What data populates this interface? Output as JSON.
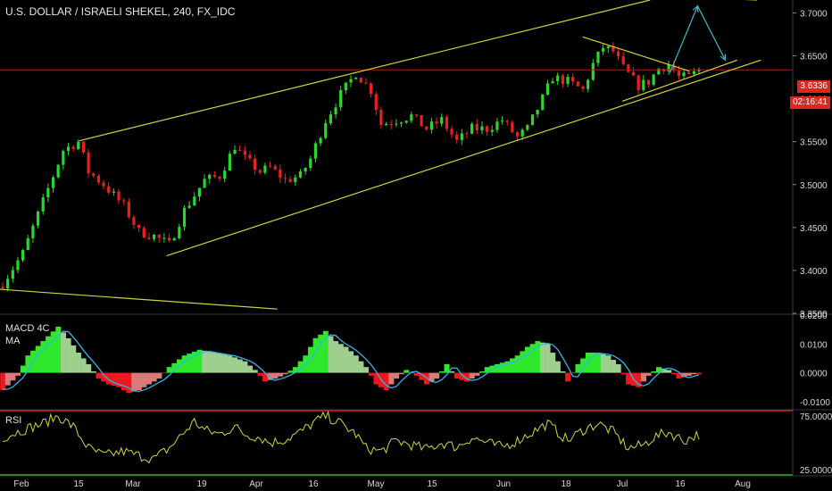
{
  "header": {
    "title": "U.S. DOLLAR / ISRAELI SHEKEL, 240, FX_IDC"
  },
  "price_tags": {
    "last_price": "3.6336",
    "countdown": "02:16:41"
  },
  "panels": {
    "macd_label_1": "MACD 4C",
    "macd_label_2": "MA",
    "rsi_label": "RSI"
  },
  "colors": {
    "background": "#000000",
    "candle_up": "#29d82a",
    "candle_down": "#e8201e",
    "trendline": "#d4d23a",
    "arrow": "#3bb7c8",
    "macd_pos": "#2ee82e",
    "macd_pos_fade": "#9fcf8f",
    "macd_neg": "#f0161b",
    "macd_neg_fade": "#d97a7a",
    "macd_signal": "#2fb6e8",
    "rsi_line": "#d6d23a",
    "rsi_upper": "#ff2020",
    "rsi_lower": "#22c222",
    "price_line": "#a81d1d"
  },
  "chart_data": [
    {
      "type": "candlestick",
      "title": "U.S. DOLLAR / ISRAELI SHEKEL, 240, FX_IDC",
      "x_ticks": [
        "Feb",
        "15",
        "Mar",
        "19",
        "Apr",
        "16",
        "May",
        "15",
        "Jun",
        "18",
        "Jul",
        "16",
        "Aug"
      ],
      "y_ticks": [
        "3.7000",
        "3.6500",
        "3.6000",
        "3.5500",
        "3.5000",
        "3.4500",
        "3.4000",
        "3.3500"
      ],
      "ylim": [
        3.35,
        3.715
      ],
      "close_path": [
        [
          0,
          3.385
        ],
        [
          4,
          3.42
        ],
        [
          8,
          3.48
        ],
        [
          12,
          3.54
        ],
        [
          15,
          3.55
        ],
        [
          17,
          3.515
        ],
        [
          20,
          3.5
        ],
        [
          24,
          3.475
        ],
        [
          27,
          3.445
        ],
        [
          30,
          3.44
        ],
        [
          33,
          3.43
        ],
        [
          36,
          3.47
        ],
        [
          40,
          3.505
        ],
        [
          43,
          3.51
        ],
        [
          46,
          3.545
        ],
        [
          48,
          3.53
        ],
        [
          51,
          3.515
        ],
        [
          53,
          3.52
        ],
        [
          56,
          3.505
        ],
        [
          59,
          3.51
        ],
        [
          61,
          3.53
        ],
        [
          64,
          3.575
        ],
        [
          67,
          3.605
        ],
        [
          70,
          3.63
        ],
        [
          73,
          3.61
        ],
        [
          75,
          3.57
        ],
        [
          78,
          3.575
        ],
        [
          81,
          3.58
        ],
        [
          84,
          3.565
        ],
        [
          87,
          3.575
        ],
        [
          90,
          3.55
        ],
        [
          93,
          3.565
        ],
        [
          96,
          3.565
        ],
        [
          99,
          3.575
        ],
        [
          102,
          3.555
        ],
        [
          104,
          3.565
        ],
        [
          107,
          3.6
        ],
        [
          109,
          3.625
        ],
        [
          112,
          3.62
        ],
        [
          115,
          3.61
        ],
        [
          117,
          3.64
        ],
        [
          119,
          3.66
        ],
        [
          121,
          3.655
        ],
        [
          123,
          3.635
        ],
        [
          126,
          3.615
        ],
        [
          128,
          3.62
        ],
        [
          130,
          3.635
        ],
        [
          132,
          3.64
        ],
        [
          134,
          3.625
        ],
        [
          136,
          3.625
        ],
        [
          138,
          3.6336
        ]
      ],
      "last_price": 3.6336,
      "annotations": {
        "channel_upper": [
          [
            0.1,
            3.551
          ],
          [
            0.82,
            3.715
          ]
        ],
        "channel_lower": [
          [
            0.21,
            3.417
          ],
          [
            0.96,
            3.645
          ]
        ],
        "long_resistance": [
          [
            0.55,
            3.73
          ],
          [
            0.955,
            3.715
          ]
        ],
        "long_support": [
          [
            0.0,
            3.378
          ],
          [
            0.35,
            3.355
          ]
        ],
        "triangle_top": [
          [
            0.735,
            3.672
          ],
          [
            0.87,
            3.632
          ]
        ],
        "triangle_bottom": [
          [
            0.785,
            3.597
          ],
          [
            0.93,
            3.645
          ]
        ],
        "projection_arrow": [
          [
            0.845,
            3.63
          ],
          [
            0.88,
            3.708
          ],
          [
            0.915,
            3.645
          ]
        ]
      }
    },
    {
      "type": "histogram",
      "title": "MACD 4C",
      "y_ticks": [
        "0.0200",
        "0.0100",
        "0.0000",
        "-0.0100"
      ],
      "ylim": [
        -0.0125,
        0.02
      ],
      "path": [
        [
          0,
          -0.006
        ],
        [
          3,
          -0.001
        ],
        [
          5,
          0.006
        ],
        [
          8,
          0.011
        ],
        [
          11,
          0.016
        ],
        [
          13,
          0.012
        ],
        [
          15,
          0.007
        ],
        [
          17,
          0.003
        ],
        [
          19,
          -0.002
        ],
        [
          21,
          -0.004
        ],
        [
          23,
          -0.005
        ],
        [
          25,
          -0.007
        ],
        [
          27,
          -0.006
        ],
        [
          29,
          -0.004
        ],
        [
          31,
          -0.002
        ],
        [
          33,
          0.002
        ],
        [
          36,
          0.006
        ],
        [
          39,
          0.008
        ],
        [
          42,
          0.007
        ],
        [
          45,
          0.006
        ],
        [
          48,
          0.004
        ],
        [
          50,
          0.001
        ],
        [
          52,
          -0.003
        ],
        [
          54,
          -0.002
        ],
        [
          56,
          -0.0005
        ],
        [
          58,
          0.002
        ],
        [
          60,
          0.006
        ],
        [
          62,
          0.012
        ],
        [
          64,
          0.0145
        ],
        [
          66,
          0.011
        ],
        [
          68,
          0.009
        ],
        [
          70,
          0.006
        ],
        [
          72,
          0.002
        ],
        [
          74,
          -0.004
        ],
        [
          76,
          -0.006
        ],
        [
          78,
          -0.002
        ],
        [
          80,
          0.001
        ],
        [
          82,
          -0.001
        ],
        [
          84,
          -0.004
        ],
        [
          86,
          -0.002
        ],
        [
          88,
          0.003
        ],
        [
          90,
          -0.002
        ],
        [
          92,
          -0.003
        ],
        [
          94,
          -0.001
        ],
        [
          96,
          0.002
        ],
        [
          98,
          0.003
        ],
        [
          100,
          0.004
        ],
        [
          102,
          0.006
        ],
        [
          104,
          0.009
        ],
        [
          106,
          0.011
        ],
        [
          108,
          0.01
        ],
        [
          110,
          0.004
        ],
        [
          112,
          -0.003
        ],
        [
          114,
          0.003
        ],
        [
          116,
          0.007
        ],
        [
          118,
          0.007
        ],
        [
          120,
          0.006
        ],
        [
          122,
          0.003
        ],
        [
          124,
          -0.004
        ],
        [
          126,
          -0.005
        ],
        [
          128,
          -0.001
        ],
        [
          130,
          0.002
        ],
        [
          132,
          0.001
        ],
        [
          134,
          -0.002
        ],
        [
          137,
          -0.0005
        ]
      ]
    },
    {
      "type": "line",
      "title": "RSI",
      "y_ticks": [
        "75.0000",
        "25.0000"
      ],
      "ylim": [
        20,
        80
      ],
      "levels": [
        80,
        20
      ],
      "path": [
        [
          0,
          55
        ],
        [
          4,
          62
        ],
        [
          8,
          68
        ],
        [
          11,
          75
        ],
        [
          14,
          65
        ],
        [
          17,
          45
        ],
        [
          20,
          38
        ],
        [
          24,
          42
        ],
        [
          27,
          38
        ],
        [
          30,
          35
        ],
        [
          33,
          45
        ],
        [
          36,
          60
        ],
        [
          38,
          70
        ],
        [
          40,
          62
        ],
        [
          43,
          58
        ],
        [
          46,
          65
        ],
        [
          48,
          58
        ],
        [
          51,
          55
        ],
        [
          53,
          50
        ],
        [
          56,
          53
        ],
        [
          59,
          60
        ],
        [
          62,
          70
        ],
        [
          64,
          75
        ],
        [
          67,
          68
        ],
        [
          70,
          58
        ],
        [
          72,
          45
        ],
        [
          75,
          42
        ],
        [
          78,
          52
        ],
        [
          81,
          48
        ],
        [
          84,
          44
        ],
        [
          87,
          50
        ],
        [
          90,
          46
        ],
        [
          93,
          55
        ],
        [
          96,
          50
        ],
        [
          99,
          46
        ],
        [
          102,
          52
        ],
        [
          105,
          60
        ],
        [
          108,
          68
        ],
        [
          110,
          60
        ],
        [
          112,
          52
        ],
        [
          115,
          62
        ],
        [
          118,
          68
        ],
        [
          121,
          60
        ],
        [
          124,
          45
        ],
        [
          127,
          48
        ],
        [
          129,
          55
        ],
        [
          132,
          60
        ],
        [
          135,
          52
        ],
        [
          138,
          58
        ]
      ]
    }
  ]
}
